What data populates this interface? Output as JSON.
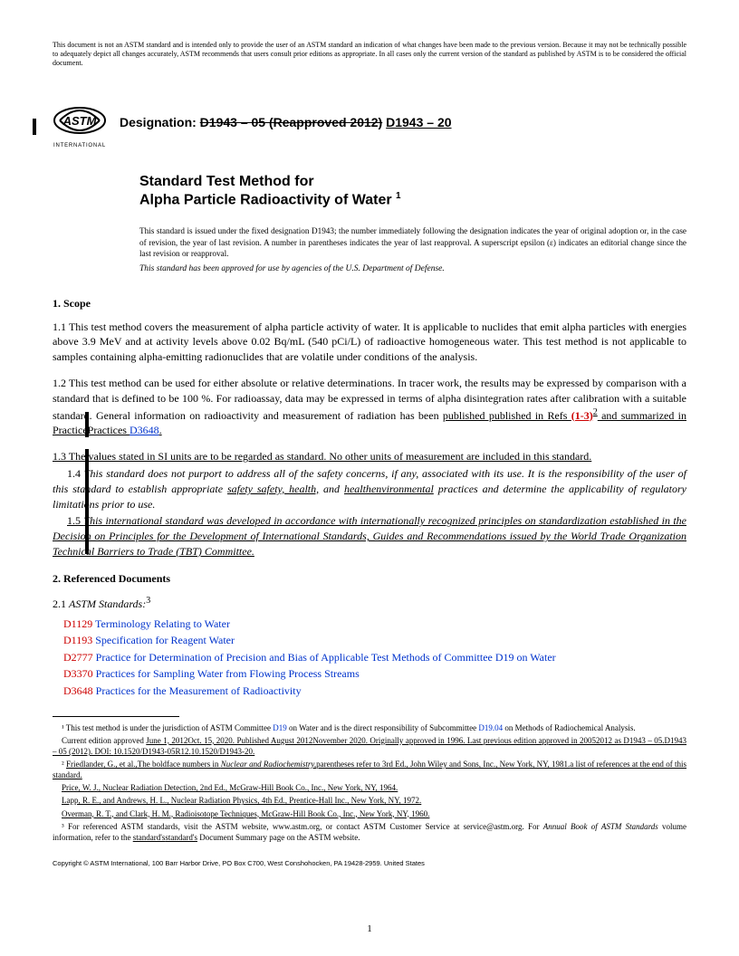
{
  "disclaimer": "This document is not an ASTM standard and is intended only to provide the user of an ASTM standard an indication of what changes have been made to the previous version. Because it may not be technically possible to adequately depict all changes accurately, ASTM recommends that users consult prior editions as appropriate. In all cases only the current version of the standard as published by ASTM is to be considered the official document.",
  "designation_label": "Designation:",
  "designation_old": "D1943 – 05 (Reapproved 2012)",
  "designation_new": "D1943 – 20",
  "title_line1": "Standard Test Method for",
  "title_line2": "Alpha Particle Radioactivity of Water",
  "title_sup": "1",
  "issuance": "This standard is issued under the fixed designation D1943; the number immediately following the designation indicates the year of original adoption or, in the case of revision, the year of last revision. A number in parentheses indicates the year of last reapproval. A superscript epsilon (ε) indicates an editorial change since the last revision or reapproval.",
  "dod_note": "This standard has been approved for use by agencies of the U.S. Department of Defense.",
  "scope_head": "1.  Scope",
  "p11": "1.1  This test method covers the measurement of alpha particle activity of water. It is applicable to nuclides that emit alpha particles with energies above 3.9 MeV and at activity levels above 0.02 Bq/mL (540 pCi/L) of radioactive homogeneous water. This test method is not applicable to samples containing alpha-emitting radionuclides that are volatile under conditions of the analysis.",
  "p12_a": "1.2  This test method can be used for either absolute or relative determinations. In tracer work, the results may be expressed by comparison with a standard that is defined to be 100 %. For radioassay, data may be expressed in terms of alpha disintegration rates after calibration with a suitable standard. General information on radioactivity and measurement of radiation has been ",
  "p12_strike1": "published",
  "p12_b": " published in Refs ",
  "p12_ref": "(1-3)",
  "p12_sup": "2",
  "p12_c": " and summarized in ",
  "p12_strike2": "Practice",
  "p12_d": "Practices ",
  "p12_link": "D3648",
  "p13": "1.3  The values stated in SI units are to be regarded as standard. No other units of measurement are included in this standard.",
  "p14_a": "1.4  ",
  "p14_b": "This standard does not purport to address all of the safety concerns, if any, associated with its use. It is the responsibility of the user of this standard to establish appropriate ",
  "p14_strike": "safety",
  "p14_c": " safety, health,",
  "p14_d": " and ",
  "p14_strike2": "health",
  "p14_e": "environmental",
  "p14_f": " practices and determine the applicability of regulatory limitations prior to use.",
  "p15_a": "1.5 ",
  "p15_b": "This international standard was developed in accordance with internationally recognized principles on standardization established in the Decision on Principles for the Development of International Standards, Guides and Recommendations issued by the World Trade Organization Technical Barriers to Trade (TBT) Committee.",
  "refdocs_head": "2.  Referenced Documents",
  "refdocs_sub": "2.1  ",
  "refdocs_sub_i": "ASTM Standards:",
  "refdocs_sup": "3",
  "refs": [
    {
      "code": "D1129",
      "title": "Terminology Relating to Water"
    },
    {
      "code": "D1193",
      "title": "Specification for Reagent Water"
    },
    {
      "code": "D2777",
      "title": "Practice for Determination of Precision and Bias of Applicable Test Methods of Committee D19 on Water"
    },
    {
      "code": "D3370",
      "title": "Practices for Sampling Water from Flowing Process Streams"
    },
    {
      "code": "D3648",
      "title": "Practices for the Measurement of Radioactivity"
    }
  ],
  "fn1_a": "¹ This test method is under the jurisdiction of ASTM Committee ",
  "fn1_link1": "D19",
  "fn1_b": " on Water and is the direct responsibility of Subcommittee ",
  "fn1_link2": "D19.04",
  "fn1_c": " on Methods of Radiochemical Analysis.",
  "fn1_line2_a": "Current edition approved ",
  "fn1_line2_strike1": "June 1, 2012",
  "fn1_line2_b": "Oct. 15, 2020. Published ",
  "fn1_line2_strike2": "August 2012",
  "fn1_line2_c": "November 2020. Originally approved in 1996. Last previous edition approved in ",
  "fn1_line2_strike3": "2005",
  "fn1_line2_d": "2012 as ",
  "fn1_line2_strike4": "D1943 – 05.",
  "fn1_line2_e": "D1943 – 05 (2012). DOI: ",
  "fn1_line2_strike5": "10.1520/D1943-05R12.",
  "fn1_line2_f": "10.1520/D1943-20.",
  "fn2_a": "² ",
  "fn2_strike1": "Friedlander, G., et al.,",
  "fn2_b": "The boldface numbers in ",
  "fn2_strike2": "Nuclear and Radiochemistry,",
  "fn2_c": "parentheses refer to ",
  "fn2_strike3": "3rd Ed., John Wiley and Sons, Inc., New York, NY, 1981.",
  "fn2_d": "a list of references at the end of this standard.",
  "fn2_line2": "Price, W. J., Nuclear Radiation Detection, 2nd Ed., McGraw-Hill Book Co., Inc., New York, NY, 1964.",
  "fn2_line3": "Lapp, R. E., and Andrews, H. L., Nuclear Radiation Physics, 4th Ed., Prentice-Hall Inc., New York, NY, 1972.",
  "fn2_line4": "Overman, R. T., and Clark, H. M., Radioisotope Techniques, McGraw-Hill Book Co., Inc., New York, NY, 1960.",
  "fn3_a": "³ For referenced ASTM standards, visit the ASTM website, www.astm.org, or contact ASTM Customer Service at service@astm.org. For ",
  "fn3_i": "Annual Book of ASTM Standards",
  "fn3_b": " volume information, refer to the ",
  "fn3_strike": "standard's",
  "fn3_c": "standard's",
  "fn3_d": " Document Summary page on the ASTM website.",
  "copyright": "Copyright © ASTM International, 100 Barr Harbor Drive, PO Box C700, West Conshohocken, PA 19428-2959. United States",
  "page_num": "1"
}
